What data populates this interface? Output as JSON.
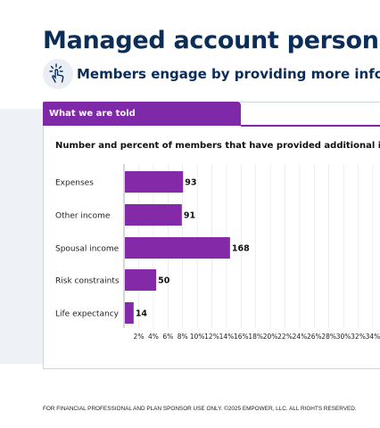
{
  "title": "Managed account personali",
  "subtitle": "Members engage by providing more information",
  "tab_label": "What we are told",
  "chart_data": {
    "type": "bar",
    "orientation": "horizontal",
    "title": "Number and percent of members that have provided additional informa",
    "categories": [
      "Expenses",
      "Other income",
      "Spousal income",
      "Risk constraints",
      "Life expectancy"
    ],
    "values": [
      93,
      91,
      168,
      50,
      14
    ],
    "x_tick_labels": [
      "2%",
      "4%",
      "6%",
      "8%",
      "10%",
      "12%",
      "14%",
      "16%",
      "18%",
      "20%",
      "22%",
      "24%",
      "26%",
      "28%",
      "30%",
      "32%",
      "34%"
    ],
    "bar_color": "#8429a8",
    "grid": true
  },
  "footer": "FOR FINANCIAL PROFESSIONAL AND PLAN SPONSOR USE ONLY. ©2025 EMPOWER, LLC. ALL RIGHTS RESERVED."
}
